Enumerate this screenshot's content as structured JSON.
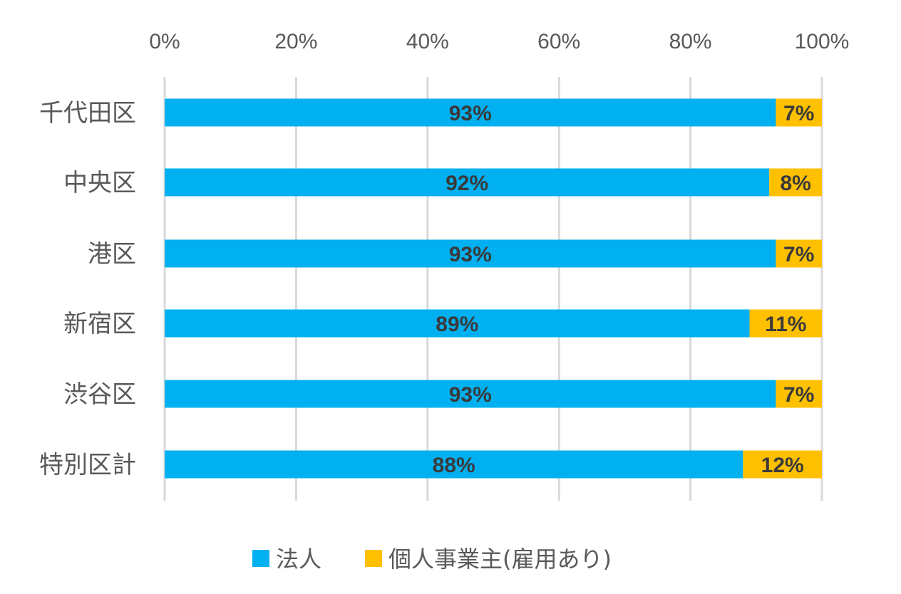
{
  "chart_data": {
    "type": "bar",
    "orientation": "horizontal",
    "stacked": "percent",
    "categories": [
      "千代田区",
      "中央区",
      "港区",
      "新宿区",
      "渋谷区",
      "特別区計"
    ],
    "series": [
      {
        "name": "法人",
        "values": [
          93,
          92,
          93,
          89,
          93,
          88
        ],
        "labels": [
          "93%",
          "92%",
          "93%",
          "89%",
          "93%",
          "88%"
        ],
        "color": "#00b0f0"
      },
      {
        "name": "個人事業主(雇用あり)",
        "values": [
          7,
          8,
          7,
          11,
          7,
          12
        ],
        "labels": [
          "7%",
          "8%",
          "7%",
          "11%",
          "7%",
          "12%"
        ],
        "color": "#ffc000"
      }
    ],
    "xlim": [
      0,
      100
    ],
    "xticks": [
      0,
      20,
      40,
      60,
      80,
      100
    ],
    "xtick_labels": [
      "0%",
      "20%",
      "40%",
      "60%",
      "80%",
      "100%"
    ],
    "grid": true,
    "legend": "bottom",
    "title": "",
    "xlabel": "",
    "ylabel": ""
  }
}
